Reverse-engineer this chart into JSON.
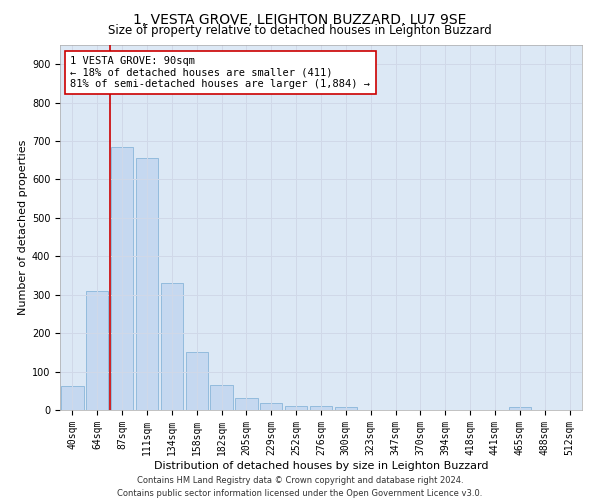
{
  "title_line1": "1, VESTA GROVE, LEIGHTON BUZZARD, LU7 9SE",
  "title_line2": "Size of property relative to detached houses in Leighton Buzzard",
  "xlabel": "Distribution of detached houses by size in Leighton Buzzard",
  "ylabel": "Number of detached properties",
  "bar_labels": [
    "40sqm",
    "64sqm",
    "87sqm",
    "111sqm",
    "134sqm",
    "158sqm",
    "182sqm",
    "205sqm",
    "229sqm",
    "252sqm",
    "276sqm",
    "300sqm",
    "323sqm",
    "347sqm",
    "370sqm",
    "394sqm",
    "418sqm",
    "441sqm",
    "465sqm",
    "488sqm",
    "512sqm"
  ],
  "bar_values": [
    62,
    310,
    685,
    655,
    330,
    150,
    65,
    30,
    18,
    11,
    10,
    8,
    0,
    0,
    0,
    0,
    0,
    0,
    8,
    0,
    0
  ],
  "bar_color": "#c5d8f0",
  "bar_edge_color": "#7badd4",
  "vline_color": "#cc0000",
  "annotation_line1": "1 VESTA GROVE: 90sqm",
  "annotation_line2": "← 18% of detached houses are smaller (411)",
  "annotation_line3": "81% of semi-detached houses are larger (1,884) →",
  "annotation_box_color": "#ffffff",
  "annotation_box_edge": "#cc0000",
  "ylim": [
    0,
    950
  ],
  "yticks": [
    0,
    100,
    200,
    300,
    400,
    500,
    600,
    700,
    800,
    900
  ],
  "grid_color": "#d0d8e8",
  "bg_color": "#ffffff",
  "plot_bg_color": "#dce8f5",
  "footer_line1": "Contains HM Land Registry data © Crown copyright and database right 2024.",
  "footer_line2": "Contains public sector information licensed under the Open Government Licence v3.0.",
  "title_fontsize": 10,
  "subtitle_fontsize": 8.5,
  "axis_label_fontsize": 8,
  "tick_fontsize": 7,
  "annotation_fontsize": 7.5,
  "footer_fontsize": 6
}
